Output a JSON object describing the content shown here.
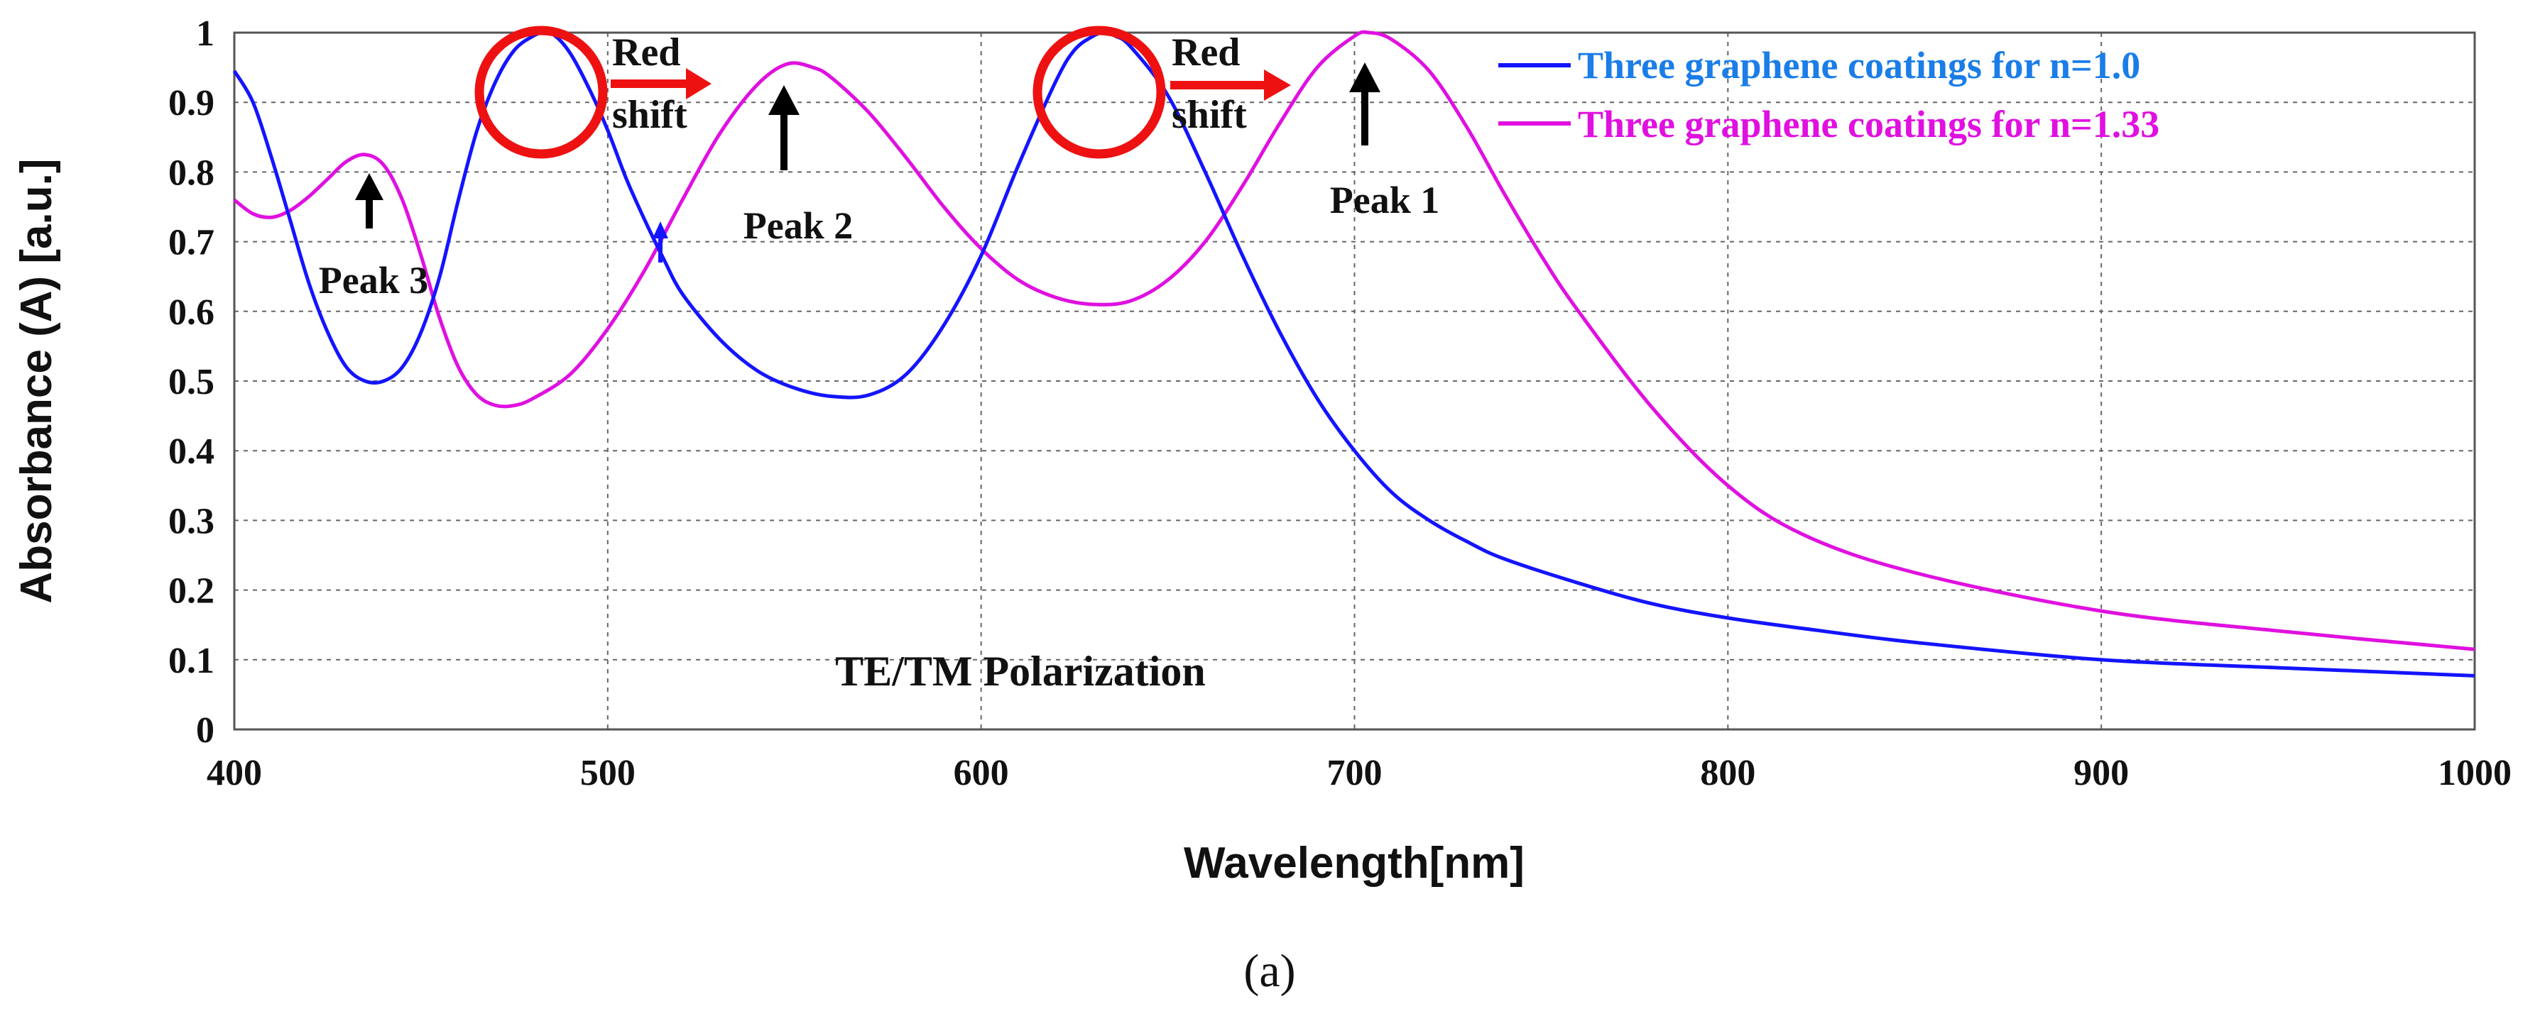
{
  "chart_data": {
    "type": "line",
    "title": "",
    "xlabel": "Wavelength[nm]",
    "ylabel": "Absorbance (A) [a.u.]",
    "xlim": [
      400,
      1000
    ],
    "ylim": [
      0,
      1
    ],
    "grid": true,
    "x_ticks": [
      400,
      500,
      600,
      700,
      800,
      900,
      1000
    ],
    "x_tick_labels": [
      "400",
      "500",
      "600",
      "700",
      "800",
      "900",
      "1000"
    ],
    "y_ticks": [
      0,
      0.1,
      0.2,
      0.3,
      0.4,
      0.5,
      0.6,
      0.7,
      0.8,
      0.9,
      1
    ],
    "y_tick_labels": [
      "0",
      "0.1",
      "0.2",
      "0.3",
      "0.4",
      "0.5",
      "0.6",
      "0.7",
      "0.8",
      "0.9",
      "1"
    ],
    "legend_position": "top-right",
    "series": [
      {
        "name": "Three graphene coatings for n=1.0",
        "color": "#1414ff",
        "label_color": "#1a7de8",
        "x": [
          400,
          405,
          410,
          415,
          420,
          425,
          430,
          435,
          440,
          445,
          450,
          455,
          460,
          465,
          470,
          475,
          480,
          483,
          486,
          490,
          495,
          500,
          505,
          510,
          515,
          520,
          530,
          540,
          550,
          560,
          570,
          580,
          590,
          600,
          610,
          620,
          625,
          630,
          633,
          636,
          640,
          650,
          660,
          670,
          680,
          690,
          700,
          710,
          720,
          730,
          740,
          760,
          780,
          800,
          820,
          850,
          900,
          950,
          1000
        ],
        "y": [
          0.945,
          0.9,
          0.82,
          0.73,
          0.64,
          0.57,
          0.52,
          0.5,
          0.5,
          0.52,
          0.57,
          0.65,
          0.76,
          0.86,
          0.93,
          0.975,
          0.995,
          1.0,
          0.995,
          0.97,
          0.92,
          0.86,
          0.79,
          0.73,
          0.675,
          0.625,
          0.56,
          0.515,
          0.49,
          0.478,
          0.48,
          0.51,
          0.58,
          0.68,
          0.81,
          0.93,
          0.975,
          0.995,
          1.0,
          0.995,
          0.98,
          0.91,
          0.8,
          0.68,
          0.57,
          0.475,
          0.4,
          0.34,
          0.3,
          0.27,
          0.245,
          0.21,
          0.18,
          0.16,
          0.145,
          0.125,
          0.1,
          0.088,
          0.077
        ]
      },
      {
        "name": "Three graphene coatings for n=1.33",
        "color": "#e010e0",
        "label_color": "#e010e0",
        "x": [
          400,
          405,
          410,
          415,
          420,
          425,
          430,
          435,
          440,
          445,
          450,
          455,
          460,
          465,
          470,
          475,
          480,
          490,
          500,
          510,
          520,
          530,
          540,
          548,
          555,
          560,
          570,
          580,
          590,
          600,
          610,
          620,
          630,
          640,
          650,
          660,
          670,
          680,
          690,
          700,
          704,
          710,
          720,
          730,
          740,
          750,
          760,
          780,
          800,
          820,
          850,
          900,
          950,
          1000
        ],
        "y": [
          0.76,
          0.74,
          0.735,
          0.745,
          0.765,
          0.79,
          0.815,
          0.825,
          0.81,
          0.76,
          0.68,
          0.59,
          0.52,
          0.48,
          0.465,
          0.465,
          0.475,
          0.51,
          0.575,
          0.66,
          0.76,
          0.855,
          0.925,
          0.955,
          0.95,
          0.935,
          0.885,
          0.82,
          0.75,
          0.69,
          0.645,
          0.62,
          0.61,
          0.615,
          0.645,
          0.7,
          0.78,
          0.87,
          0.95,
          0.995,
          1.0,
          0.99,
          0.945,
          0.865,
          0.77,
          0.68,
          0.6,
          0.46,
          0.35,
          0.28,
          0.225,
          0.17,
          0.14,
          0.115
        ]
      }
    ],
    "annotations": {
      "peak1": "Peak 1",
      "peak2": "Peak 2",
      "peak3": "Peak 3",
      "red_shift_1": [
        "Red",
        "shift"
      ],
      "red_shift_2": [
        "Red",
        "shift"
      ],
      "polarization": "TE/TM Polarization",
      "subfigure": "(a)"
    }
  }
}
